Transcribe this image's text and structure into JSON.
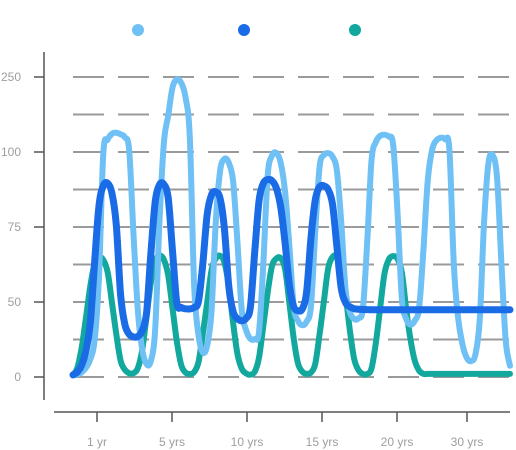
{
  "chart_data": {
    "type": "line",
    "title": "",
    "xlabel": "",
    "ylabel": "",
    "x_ticks": [
      "1 yr",
      "5 yrs",
      "10 yrs",
      "15 yrs",
      "20 yrs",
      "30 yrs"
    ],
    "y_ticks": [
      "0",
      "50",
      "75",
      "100",
      "250"
    ],
    "y_tick_values": [
      0,
      50,
      75,
      100,
      250
    ],
    "y_scale": "uneven (ticks 0, 50, 75, 100, 250 evenly spaced)",
    "gridlines": "dashed, one between each labeled tick",
    "legend": "top, markers only, no text labels",
    "x": [
      0,
      0.6,
      1.2,
      1.8,
      2.4,
      3.0,
      3.6,
      4.2,
      4.8,
      5.4,
      6.0,
      6.6,
      7.2,
      7.8,
      8.4,
      9.0,
      9.6,
      10.2,
      10.8,
      11.4,
      12.0,
      12.6,
      13.2,
      13.8,
      14.4,
      15.0,
      15.6,
      16.2,
      16.8,
      17.4,
      18.0,
      18.6,
      19.2,
      19.8,
      20.4,
      21.0,
      21.6,
      22.2,
      22.8,
      23.4,
      24.0,
      24.6,
      25.2,
      25.8,
      26.4,
      27.0,
      27.6,
      28.2,
      28.8,
      29.4,
      30.0,
      30.6,
      31.2,
      31.8,
      32.4,
      33.0,
      33.6,
      34.2,
      34.8,
      35.4,
      36.0,
      36.6,
      37.2,
      37.8,
      38.4,
      39.0,
      39.6,
      40.2,
      40.8,
      41.4,
      42.0,
      42.6,
      43.2,
      43.8,
      44.4,
      45.0,
      45.6,
      46.2,
      46.8,
      47.4,
      48.0,
      48.6,
      49.2,
      49.8,
      50.4,
      51.0,
      51.6,
      52.2,
      52.8,
      53.4,
      54.0,
      54.6,
      55.2,
      55.8,
      56.4,
      57.0,
      57.6,
      58.2,
      58.8,
      59.4,
      60.0,
      60.6
    ],
    "series": [
      {
        "color": "#6ec0f5",
        "values": [
          1,
          1.6,
          3.1,
          6.2,
          11.8,
          24.5,
          58.4,
          99.5,
          124.9,
          136.3,
          138.6,
          135.4,
          129.1,
          102.2,
          72.0,
          44.0,
          18.4,
          8.6,
          10.7,
          32.1,
          77.1,
          118.4,
          172.6,
          229.1,
          245.0,
          238.5,
          209.7,
          129.1,
          55.8,
          28.0,
          16.4,
          20.8,
          43.5,
          76.6,
          93.7,
          97.7,
          96.4,
          90.3,
          70.1,
          44.8,
          31.2,
          25.5,
          25.3,
          30.2,
          63.2,
          92.2,
          98.8,
          99.7,
          96.4,
          86.9,
          68.9,
          47.2,
          37.5,
          34.5,
          37.0,
          47.3,
          73.8,
          95.1,
          99.0,
          99.6,
          98.4,
          93.7,
          76.4,
          54.1,
          43.3,
          38.7,
          39.2,
          45.7,
          70.0,
          97.2,
          120.0,
          132.4,
          134.4,
          130.8,
          114.0,
          80.0,
          51.3,
          38.7,
          34.9,
          37.6,
          46.3,
          67.6,
          90.6,
          104.4,
          123.5,
          128.4,
          125.4,
          104.2,
          62.8,
          39.5,
          22.0,
          12.8,
          10.6,
          15.0,
          38.0,
          76.2,
          96.2,
          98.9,
          91.6,
          63.6,
          24.5,
          7.5
        ]
      },
      {
        "color": "#1a6be6",
        "values": [
          1.5,
          3.3,
          7.9,
          17.6,
          36.1,
          63.3,
          82.1,
          88.7,
          89.6,
          86.3,
          75.7,
          52.4,
          34.9,
          28.5,
          26.7,
          27.0,
          31.0,
          43.0,
          66.2,
          83.4,
          89.1,
          89.2,
          84.7,
          67.0,
          49.4,
          46.4,
          45.5,
          45.4,
          46.4,
          50.2,
          62.7,
          79.0,
          85.7,
          86.7,
          84.5,
          74.4,
          55.2,
          43.6,
          38.9,
          37.5,
          39.1,
          46.7,
          66.6,
          83.6,
          89.6,
          90.8,
          90.4,
          87.9,
          81.7,
          69.9,
          55.8,
          46.9,
          44.2,
          45.4,
          53.4,
          71.4,
          84.1,
          88.4,
          88.7,
          87.4,
          82.4,
          68.4,
          54.5,
          49.5,
          46.8,
          45.5,
          45.2,
          45.0,
          44.9,
          44.8,
          44.8,
          44.8,
          44.8,
          44.8,
          44.8,
          44.8,
          44.8,
          44.8,
          44.8,
          44.8,
          44.8,
          44.8,
          44.8,
          44.8,
          44.8,
          44.8,
          44.8,
          44.8,
          44.8,
          44.8,
          44.8,
          44.8,
          44.8,
          44.8,
          44.8,
          44.8,
          44.8,
          44.8,
          44.8,
          44.8,
          44.8,
          44.8
        ]
      },
      {
        "color": "#12a89e",
        "values": [
          1,
          6.1,
          19.6,
          39.6,
          55.3,
          62.7,
          65.0,
          64.0,
          60.0,
          49.8,
          28.6,
          10.9,
          4.8,
          2.5,
          2.6,
          6.0,
          18.1,
          40.5,
          56.5,
          63.7,
          65.5,
          64.1,
          58.9,
          45.8,
          23.8,
          8.1,
          3.0,
          2.0,
          3.3,
          9.9,
          28.6,
          49.2,
          60.5,
          64.5,
          65.4,
          63.2,
          55.4,
          36.2,
          15.5,
          5.6,
          2.4,
          1.6,
          3.5,
          12.9,
          34.5,
          53.2,
          62.0,
          64.5,
          64.6,
          61.1,
          49.8,
          25.8,
          9.1,
          3.6,
          2.1,
          3.0,
          8.9,
          28.7,
          50.5,
          61.4,
          65.0,
          65.3,
          62.3,
          52.5,
          30.8,
          11.9,
          4.5,
          2.0,
          2.0,
          5.7,
          22.9,
          46.3,
          59.5,
          64.2,
          65.3,
          64.4,
          59.9,
          45.4,
          25.1,
          10.7,
          4.3,
          2.1,
          2.1,
          2.1,
          2.1,
          2.1,
          2.1,
          2.1,
          2.1,
          2.1,
          2.1,
          2.1,
          2.1,
          2.1,
          2.1,
          2.1,
          2.1,
          2.1,
          2.1,
          2.1,
          2.1,
          2.1
        ]
      }
    ]
  }
}
